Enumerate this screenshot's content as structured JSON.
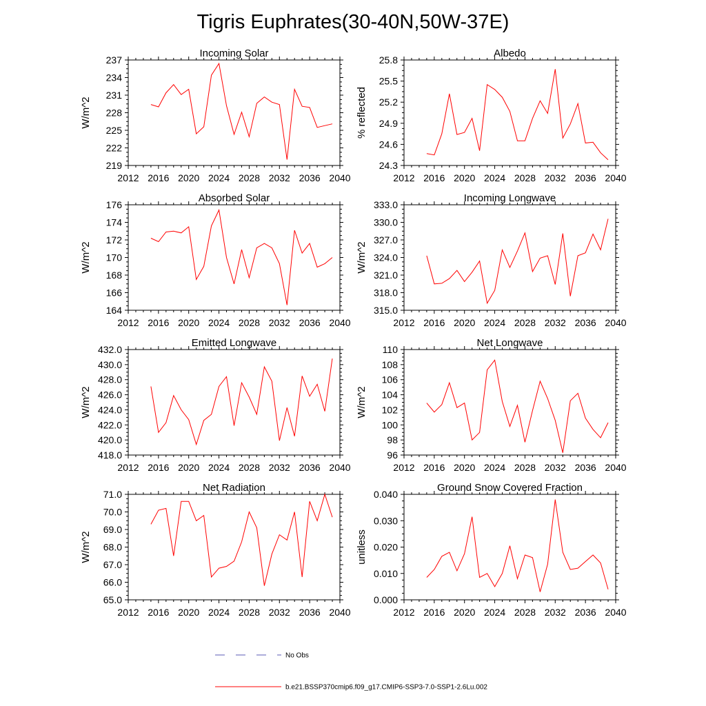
{
  "title": "Tigris Euphrates(30-40N,50W-37E)",
  "legend": {
    "obs_label": "No Obs",
    "obs_color": "#5a5ab4",
    "model_label": "b.e21.BSSP370cmip6.f09_g17.CMIP6-SSP3-7.0-SSP1-2.6Lu.002",
    "model_color": "#ff0000"
  },
  "chart_data": [
    {
      "type": "line",
      "title": "Incoming Solar",
      "xlabel": "",
      "ylabel": "W/m^2",
      "xlim": [
        2012,
        2040
      ],
      "xticks": [
        "2012",
        "2016",
        "2020",
        "2024",
        "2028",
        "2032",
        "2036",
        "2040"
      ],
      "ylim": [
        219,
        237
      ],
      "yticks": [
        "219",
        "222",
        "225",
        "228",
        "231",
        "234",
        "237"
      ],
      "x": [
        2015,
        2016,
        2017,
        2018,
        2019,
        2020,
        2021,
        2022,
        2023,
        2024,
        2025,
        2026,
        2027,
        2028,
        2029,
        2030,
        2031,
        2032,
        2033,
        2034,
        2035,
        2036,
        2037,
        2038,
        2039
      ],
      "series": [
        {
          "values": [
            229.4,
            229.0,
            231.4,
            232.8,
            231.1,
            232.0,
            224.4,
            225.6,
            234.4,
            236.4,
            229.2,
            224.3,
            228.1,
            223.9,
            229.6,
            230.7,
            229.8,
            229.4,
            220.0,
            232.0,
            229.1,
            228.9,
            225.5,
            225.8,
            226.1
          ]
        }
      ]
    },
    {
      "type": "line",
      "title": "Albedo",
      "xlabel": "",
      "ylabel": "% reflected",
      "xlim": [
        2012,
        2040
      ],
      "xticks": [
        "2012",
        "2016",
        "2020",
        "2024",
        "2028",
        "2032",
        "2036",
        "2040"
      ],
      "ylim": [
        24.3,
        25.8
      ],
      "yticks": [
        "24.3",
        "24.6",
        "24.9",
        "25.2",
        "25.5",
        "25.8"
      ],
      "x": [
        2015,
        2016,
        2017,
        2018,
        2019,
        2020,
        2021,
        2022,
        2023,
        2024,
        2025,
        2026,
        2027,
        2028,
        2029,
        2030,
        2031,
        2032,
        2033,
        2034,
        2035,
        2036,
        2037,
        2038,
        2039
      ],
      "series": [
        {
          "values": [
            24.47,
            24.45,
            24.75,
            25.32,
            24.74,
            24.77,
            24.97,
            24.51,
            25.45,
            25.38,
            25.27,
            25.07,
            24.65,
            24.65,
            24.97,
            25.22,
            25.04,
            25.67,
            24.69,
            24.89,
            25.18,
            24.62,
            24.63,
            24.48,
            24.38
          ]
        }
      ]
    },
    {
      "type": "line",
      "title": "Absorbed Solar",
      "xlabel": "",
      "ylabel": "W/m^2",
      "xlim": [
        2012,
        2040
      ],
      "xticks": [
        "2012",
        "2016",
        "2020",
        "2024",
        "2028",
        "2032",
        "2036",
        "2040"
      ],
      "ylim": [
        164,
        176
      ],
      "yticks": [
        "164",
        "166",
        "168",
        "170",
        "172",
        "174",
        "176"
      ],
      "x": [
        2015,
        2016,
        2017,
        2018,
        2019,
        2020,
        2021,
        2022,
        2023,
        2024,
        2025,
        2026,
        2027,
        2028,
        2029,
        2030,
        2031,
        2032,
        2033,
        2034,
        2035,
        2036,
        2037,
        2038,
        2039
      ],
      "series": [
        {
          "values": [
            172.2,
            171.8,
            172.9,
            173.0,
            172.8,
            173.5,
            167.5,
            169.0,
            173.6,
            175.4,
            170.0,
            167.0,
            170.9,
            167.7,
            171.1,
            171.6,
            171.1,
            169.3,
            164.6,
            173.1,
            170.5,
            171.6,
            168.9,
            169.3,
            170.0
          ]
        }
      ]
    },
    {
      "type": "line",
      "title": "Incoming Longwave",
      "xlabel": "",
      "ylabel": "W/m^2",
      "xlim": [
        2012,
        2040
      ],
      "xticks": [
        "2012",
        "2016",
        "2020",
        "2024",
        "2028",
        "2032",
        "2036",
        "2040"
      ],
      "ylim": [
        315.0,
        333.0
      ],
      "yticks": [
        "315.0",
        "318.0",
        "321.0",
        "324.0",
        "327.0",
        "330.0",
        "333.0"
      ],
      "x": [
        2015,
        2016,
        2017,
        2018,
        2019,
        2020,
        2021,
        2022,
        2023,
        2024,
        2025,
        2026,
        2027,
        2028,
        2029,
        2030,
        2031,
        2032,
        2033,
        2034,
        2035,
        2036,
        2037,
        2038,
        2039
      ],
      "series": [
        {
          "values": [
            324.3,
            319.5,
            319.6,
            320.4,
            321.8,
            319.9,
            321.5,
            323.4,
            316.2,
            318.4,
            325.3,
            322.3,
            325.1,
            328.2,
            321.6,
            323.9,
            324.3,
            319.4,
            328.1,
            317.4,
            324.3,
            324.8,
            328.0,
            325.3,
            330.6
          ]
        }
      ]
    },
    {
      "type": "line",
      "title": "Emitted Longwave",
      "xlabel": "",
      "ylabel": "W/m^2",
      "xlim": [
        2012,
        2040
      ],
      "xticks": [
        "2012",
        "2016",
        "2020",
        "2024",
        "2028",
        "2032",
        "2036",
        "2040"
      ],
      "ylim": [
        418.0,
        432.0
      ],
      "yticks": [
        "418.0",
        "420.0",
        "422.0",
        "424.0",
        "426.0",
        "428.0",
        "430.0",
        "432.0"
      ],
      "x": [
        2015,
        2016,
        2017,
        2018,
        2019,
        2020,
        2021,
        2022,
        2023,
        2024,
        2025,
        2026,
        2027,
        2028,
        2029,
        2030,
        2031,
        2032,
        2033,
        2034,
        2035,
        2036,
        2037,
        2038,
        2039
      ],
      "series": [
        {
          "values": [
            427.1,
            421.0,
            422.3,
            425.9,
            424.0,
            422.7,
            419.4,
            422.6,
            423.4,
            427.1,
            428.4,
            421.9,
            427.6,
            425.7,
            423.4,
            429.7,
            427.8,
            419.9,
            424.3,
            420.5,
            428.5,
            425.8,
            427.4,
            423.8,
            430.8
          ]
        }
      ]
    },
    {
      "type": "line",
      "title": "Net Longwave",
      "xlabel": "",
      "ylabel": "W/m^2",
      "xlim": [
        2012,
        2040
      ],
      "xticks": [
        "2012",
        "2016",
        "2020",
        "2024",
        "2028",
        "2032",
        "2036",
        "2040"
      ],
      "ylim": [
        96,
        110
      ],
      "yticks": [
        "96",
        "98",
        "100",
        "102",
        "104",
        "106",
        "108",
        "110"
      ],
      "x": [
        2015,
        2016,
        2017,
        2018,
        2019,
        2020,
        2021,
        2022,
        2023,
        2024,
        2025,
        2026,
        2027,
        2028,
        2029,
        2030,
        2031,
        2032,
        2033,
        2034,
        2035,
        2036,
        2037,
        2038,
        2039
      ],
      "series": [
        {
          "values": [
            102.9,
            101.7,
            102.7,
            105.6,
            102.3,
            102.9,
            98.0,
            99.0,
            107.3,
            108.6,
            103.1,
            99.8,
            102.6,
            97.7,
            101.9,
            105.8,
            103.5,
            100.6,
            96.3,
            103.2,
            104.2,
            100.9,
            99.4,
            98.3,
            100.3
          ]
        }
      ]
    },
    {
      "type": "line",
      "title": "Net Radiation",
      "xlabel": "",
      "ylabel": "W/m^2",
      "xlim": [
        2012,
        2040
      ],
      "xticks": [
        "2012",
        "2016",
        "2020",
        "2024",
        "2028",
        "2032",
        "2036",
        "2040"
      ],
      "ylim": [
        65.0,
        71.0
      ],
      "yticks": [
        "65.0",
        "66.0",
        "67.0",
        "68.0",
        "69.0",
        "70.0",
        "71.0"
      ],
      "x": [
        2015,
        2016,
        2017,
        2018,
        2019,
        2020,
        2021,
        2022,
        2023,
        2024,
        2025,
        2026,
        2027,
        2028,
        2029,
        2030,
        2031,
        2032,
        2033,
        2034,
        2035,
        2036,
        2037,
        2038,
        2039
      ],
      "series": [
        {
          "values": [
            69.3,
            70.1,
            70.2,
            67.5,
            70.6,
            70.6,
            69.5,
            69.8,
            66.3,
            66.8,
            66.9,
            67.2,
            68.3,
            70.0,
            69.1,
            65.8,
            67.6,
            68.7,
            68.4,
            70.0,
            66.3,
            70.6,
            69.5,
            71.0,
            69.7
          ]
        }
      ]
    },
    {
      "type": "line",
      "title": "Ground Snow Covered Fraction",
      "xlabel": "",
      "ylabel": "unitless",
      "xlim": [
        2012,
        2040
      ],
      "xticks": [
        "2012",
        "2016",
        "2020",
        "2024",
        "2028",
        "2032",
        "2036",
        "2040"
      ],
      "ylim": [
        0.0,
        0.04
      ],
      "yticks": [
        "0.000",
        "0.010",
        "0.020",
        "0.030",
        "0.040"
      ],
      "x": [
        2015,
        2016,
        2017,
        2018,
        2019,
        2020,
        2021,
        2022,
        2023,
        2024,
        2025,
        2026,
        2027,
        2028,
        2029,
        2030,
        2031,
        2032,
        2033,
        2034,
        2035,
        2036,
        2037,
        2038,
        2039
      ],
      "series": [
        {
          "values": [
            0.0085,
            0.0115,
            0.0165,
            0.018,
            0.011,
            0.0175,
            0.0315,
            0.0085,
            0.01,
            0.005,
            0.01,
            0.0205,
            0.008,
            0.017,
            0.016,
            0.003,
            0.0135,
            0.038,
            0.018,
            0.0115,
            0.012,
            0.0145,
            0.017,
            0.014,
            0.004
          ]
        }
      ]
    }
  ]
}
